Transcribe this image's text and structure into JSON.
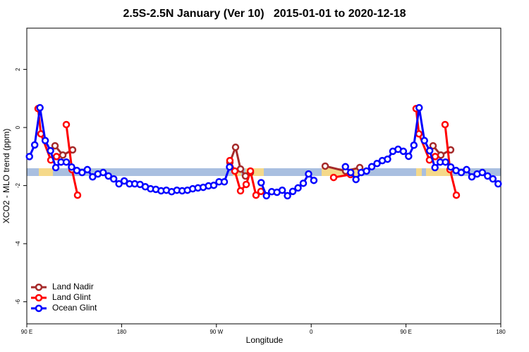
{
  "chart_data": {
    "type": "line",
    "title": "2.5S-2.5N January (Ver 10)   2015-01-01 to 2020-12-18",
    "x_label": "Longitude",
    "y_label": "XCO2 - MLO trend (ppm)",
    "xlim": [
      90,
      540
    ],
    "ylim": [
      -6.76,
      3.42
    ],
    "xticks": [
      {
        "value": 90,
        "label": "90 E"
      },
      {
        "value": 180,
        "label": "180"
      },
      {
        "value": 270,
        "label": "90 W"
      },
      {
        "value": 360,
        "label": "0"
      },
      {
        "value": 450,
        "label": "90 E"
      },
      {
        "value": 540,
        "label": "180"
      }
    ],
    "yticks": [
      -6,
      -4,
      -2,
      0,
      2
    ],
    "legend": "bottomleft",
    "series": [
      {
        "name": "Land Nadir",
        "color": "#a52a2a",
        "x": [
          116.8,
          124.2,
          133.5,
          200,
          282.8,
          288.2,
          292.9,
          297.6,
          302.3,
          340,
          373.3,
          392.7,
          406.1,
          440,
          475.7,
          483.1,
          492.4
        ],
        "values": [
          -0.63,
          -0.95,
          -0.77,
          null,
          -1.2,
          -0.68,
          -1.43,
          -1.67,
          -1.55,
          null,
          -1.33,
          -1.5,
          -1.38,
          null,
          -0.63,
          -0.95,
          -0.77
        ]
      },
      {
        "name": "Land Glint",
        "color": "#ff0000",
        "x": [
          100.7,
          103.4,
          112.8,
          118.2,
          123,
          127.5,
          132.9,
          138.2,
          200,
          282.8,
          287.5,
          292.9,
          298.3,
          302.3,
          307.6,
          312.3,
          340,
          381.3,
          397.3,
          430,
          459.6,
          462.3,
          472.3,
          477.7,
          482,
          487.1,
          491.8,
          497.8
        ],
        "values": [
          0.65,
          -0.22,
          -1.12,
          -1.0,
          null,
          0.1,
          -1.45,
          -2.33,
          null,
          -1.14,
          -1.5,
          -2.18,
          -1.96,
          -1.5,
          -2.33,
          -2.2,
          null,
          -1.72,
          -1.62,
          null,
          0.65,
          -0.22,
          -1.12,
          -1.0,
          null,
          0.1,
          -1.45,
          -2.33
        ]
      },
      {
        "name": "Ocean Glint",
        "color": "#0000ff",
        "x": [
          92.5,
          97.5,
          102.5,
          107.5,
          112.5,
          117.5,
          122.5,
          127.5,
          132.5,
          137.5,
          142.5,
          147.5,
          152.5,
          157.5,
          162.5,
          167.5,
          172.5,
          177.5,
          182.5,
          187.5,
          192.5,
          197.5,
          202.5,
          207.5,
          212.5,
          217.5,
          222.5,
          227.5,
          232.5,
          237.5,
          242.5,
          247.5,
          252.5,
          257.5,
          262.5,
          267.5,
          272.5,
          277.5,
          282.5,
          297.5,
          312.5,
          317.5,
          322.5,
          327.5,
          332.5,
          337.5,
          342.5,
          347.5,
          352.5,
          357.5,
          362.5,
          377.5,
          392.5,
          397.5,
          402.5,
          407.5,
          412.5,
          417.5,
          422.5,
          427.5,
          432.5,
          437.5,
          442.5,
          447.5,
          452.5,
          457.5,
          462.5,
          467.5,
          472.5,
          477.5,
          482.5,
          487.5,
          492.5,
          497.5,
          502.5,
          507.5,
          512.5,
          517.5,
          522.5,
          527.5,
          532.5,
          537.5
        ],
        "values": [
          -1.0,
          -0.6,
          0.68,
          -0.45,
          -0.8,
          -1.38,
          -1.19,
          -1.19,
          -1.36,
          -1.48,
          -1.55,
          -1.45,
          -1.7,
          -1.6,
          -1.55,
          -1.67,
          -1.77,
          -1.94,
          -1.84,
          -1.94,
          -1.94,
          -1.96,
          -2.04,
          -2.11,
          -2.13,
          -2.18,
          -2.16,
          -2.21,
          -2.16,
          -2.18,
          -2.16,
          -2.11,
          -2.08,
          -2.06,
          -2.01,
          -1.99,
          -1.87,
          -1.87,
          -1.36,
          null,
          -1.9,
          -2.35,
          -2.21,
          -2.23,
          -2.16,
          -2.35,
          -2.2,
          -2.08,
          -1.92,
          -1.6,
          -1.82,
          null,
          -1.35,
          -1.55,
          -1.79,
          -1.55,
          -1.5,
          -1.35,
          -1.24,
          -1.14,
          -1.09,
          -0.82,
          -0.75,
          -0.82,
          -0.99,
          -0.61,
          0.68,
          -0.45,
          -0.8,
          -1.38,
          -1.19,
          -1.19,
          -1.36,
          -1.48,
          -1.55,
          -1.45,
          -1.7,
          -1.6,
          -1.55,
          -1.67,
          -1.77,
          -1.94
        ]
      }
    ]
  }
}
